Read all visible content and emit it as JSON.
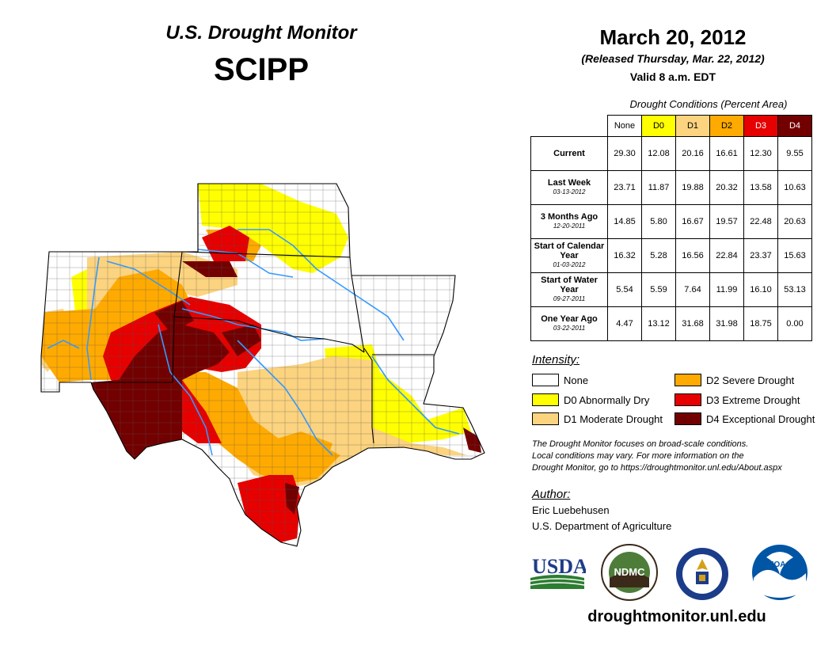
{
  "header": {
    "monitor_title": "U.S. Drought Monitor",
    "region": "SCIPP",
    "date": "March 20, 2012",
    "released": "(Released Thursday, Mar. 22, 2012)",
    "valid": "Valid 8 a.m. EDT"
  },
  "table": {
    "caption": "Drought Conditions (Percent Area)",
    "columns": [
      "None",
      "D0",
      "D1",
      "D2",
      "D3",
      "D4"
    ],
    "column_colors": [
      "#ffffff",
      "#ffff00",
      "#fcd37f",
      "#ffaa00",
      "#e60000",
      "#730000"
    ],
    "rows": [
      {
        "label": "Current",
        "sub": "",
        "values": [
          "29.30",
          "12.08",
          "20.16",
          "16.61",
          "12.30",
          "9.55"
        ]
      },
      {
        "label": "Last Week",
        "sub": "03-13-2012",
        "values": [
          "23.71",
          "11.87",
          "19.88",
          "20.32",
          "13.58",
          "10.63"
        ]
      },
      {
        "label": "3 Months Ago",
        "sub": "12-20-2011",
        "values": [
          "14.85",
          "5.80",
          "16.67",
          "19.57",
          "22.48",
          "20.63"
        ]
      },
      {
        "label": "Start of Calendar Year",
        "sub": "01-03-2012",
        "values": [
          "16.32",
          "5.28",
          "16.56",
          "22.84",
          "23.37",
          "15.63"
        ]
      },
      {
        "label": "Start of Water Year",
        "sub": "09-27-2011",
        "values": [
          "5.54",
          "5.59",
          "7.64",
          "11.99",
          "16.10",
          "53.13"
        ]
      },
      {
        "label": "One Year Ago",
        "sub": "03-22-2011",
        "values": [
          "4.47",
          "13.12",
          "31.68",
          "31.98",
          "18.75",
          "0.00"
        ]
      }
    ]
  },
  "legend": {
    "title": "Intensity:",
    "items": [
      {
        "label": "None",
        "color": "#ffffff"
      },
      {
        "label": "D0 Abnormally Dry",
        "color": "#ffff00"
      },
      {
        "label": "D1 Moderate Drought",
        "color": "#fcd37f"
      },
      {
        "label": "D2 Severe Drought",
        "color": "#ffaa00"
      },
      {
        "label": "D3 Extreme Drought",
        "color": "#e60000"
      },
      {
        "label": "D4 Exceptional Drought",
        "color": "#730000"
      }
    ]
  },
  "disclaimer": {
    "line1": "The Drought Monitor focuses on broad-scale conditions.",
    "line2": "Local conditions may vary. For more information on the",
    "line3": "Drought Monitor, go to https://droughtmonitor.unl.edu/About.aspx"
  },
  "author": {
    "title": "Author:",
    "name": "Eric Luebehusen",
    "org": "U.S. Department of Agriculture"
  },
  "logos": {
    "usda": "USDA",
    "ndmc": "NDMC",
    "noaa": "NOAA"
  },
  "url": "droughtmonitor.unl.edu"
}
